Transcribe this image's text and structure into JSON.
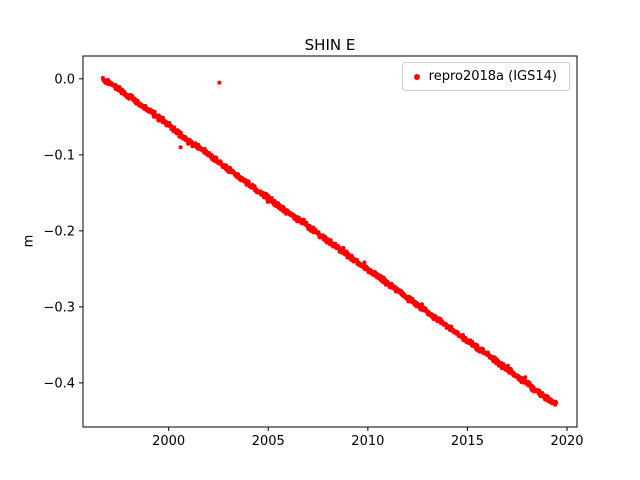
{
  "chart_data": {
    "type": "scatter",
    "title": "SHIN E",
    "xlabel": "",
    "ylabel": "m",
    "xlim": [
      1995.7,
      2020.5
    ],
    "ylim": [
      -0.458,
      0.03
    ],
    "xticks": [
      2000,
      2005,
      2010,
      2015,
      2020
    ],
    "yticks": [
      0.0,
      -0.1,
      -0.2,
      -0.3,
      -0.4
    ],
    "grid": false,
    "legend": {
      "position": "upper right",
      "entries": [
        {
          "label": "repro2018a (IGS14)",
          "marker": "dot",
          "color": "#ff0000"
        }
      ]
    },
    "series": [
      {
        "name": "repro2018a (IGS14)",
        "color": "#ff0000",
        "description": "dense daily east-component position time series, near-linear descending trend",
        "trend": {
          "x_start": 1996.7,
          "y_start": 0.0,
          "x_end": 2019.45,
          "y_end": -0.428,
          "slope_m_per_yr": -0.0188
        },
        "sampled_points": [
          [
            1996.7,
            0.0
          ],
          [
            1997.5,
            -0.013
          ],
          [
            1998.5,
            -0.033
          ],
          [
            1999.5,
            -0.051
          ],
          [
            2000.0,
            -0.06
          ],
          [
            2000.5,
            -0.072
          ],
          [
            2001.0,
            -0.082
          ],
          [
            2002.0,
            -0.099
          ],
          [
            2003.0,
            -0.119
          ],
          [
            2004.0,
            -0.138
          ],
          [
            2005.0,
            -0.157
          ],
          [
            2006.0,
            -0.176
          ],
          [
            2007.0,
            -0.194
          ],
          [
            2008.0,
            -0.213
          ],
          [
            2009.0,
            -0.232
          ],
          [
            2010.0,
            -0.251
          ],
          [
            2011.0,
            -0.269
          ],
          [
            2012.0,
            -0.288
          ],
          [
            2013.0,
            -0.307
          ],
          [
            2014.0,
            -0.326
          ],
          [
            2015.0,
            -0.344
          ],
          [
            2016.0,
            -0.363
          ],
          [
            2017.0,
            -0.382
          ],
          [
            2018.0,
            -0.401
          ],
          [
            2019.0,
            -0.42
          ],
          [
            2019.45,
            -0.428
          ]
        ],
        "outliers": [
          [
            2002.55,
            -0.005
          ],
          [
            2000.6,
            -0.09
          ]
        ]
      }
    ],
    "appearance": {
      "marker_size_px": 4,
      "background": "#ffffff",
      "axes_color": "#000000",
      "marker_color": "#ff0000",
      "noise_band_m": 0.004
    }
  }
}
